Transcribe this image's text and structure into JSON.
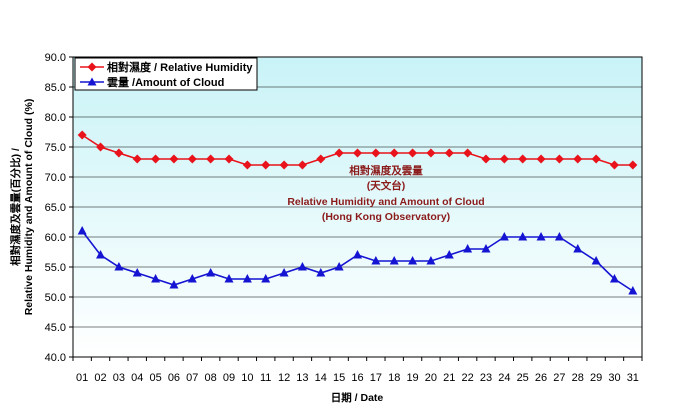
{
  "chart_data": {
    "type": "line",
    "x": [
      "01",
      "02",
      "03",
      "04",
      "05",
      "06",
      "07",
      "08",
      "09",
      "10",
      "11",
      "12",
      "13",
      "14",
      "15",
      "16",
      "17",
      "18",
      "19",
      "20",
      "21",
      "22",
      "23",
      "24",
      "25",
      "26",
      "27",
      "28",
      "29",
      "30",
      "31"
    ],
    "series": [
      {
        "name": "相對濕度 / Relative Humidity",
        "color": "#e8131b",
        "marker": "diamond",
        "values": [
          77,
          75,
          74,
          73,
          73,
          73,
          73,
          73,
          73,
          72,
          72,
          72,
          72,
          73,
          74,
          74,
          74,
          74,
          74,
          74,
          74,
          74,
          73,
          73,
          73,
          73,
          73,
          73,
          73,
          72,
          72
        ]
      },
      {
        "name": "雲量 /Amount of Cloud",
        "color": "#1414d2",
        "marker": "triangle",
        "values": [
          61,
          57,
          55,
          54,
          53,
          52,
          53,
          54,
          53,
          53,
          53,
          54,
          55,
          54,
          55,
          57,
          56,
          56,
          56,
          56,
          57,
          58,
          58,
          60,
          60,
          60,
          60,
          58,
          56,
          53,
          51
        ]
      }
    ],
    "ylim": [
      40,
      90
    ],
    "yticks": [
      "40.0",
      "45.0",
      "50.0",
      "55.0",
      "60.0",
      "65.0",
      "70.0",
      "75.0",
      "80.0",
      "85.0",
      "90.0"
    ],
    "xlabel": "日期 / Date",
    "ylabel_line1": "相對濕度及雲量(百分比) /",
    "ylabel_line2": "Relative Humidity and Amount of Cloud (%)",
    "annotation": [
      "相對濕度及雲量",
      "(天文台)",
      "Relative Humidity and Amount of Cloud",
      "(Hong Kong Observatory)"
    ],
    "legend_position": "top-left",
    "plot_background": "#dcf9fc",
    "grid": true
  }
}
